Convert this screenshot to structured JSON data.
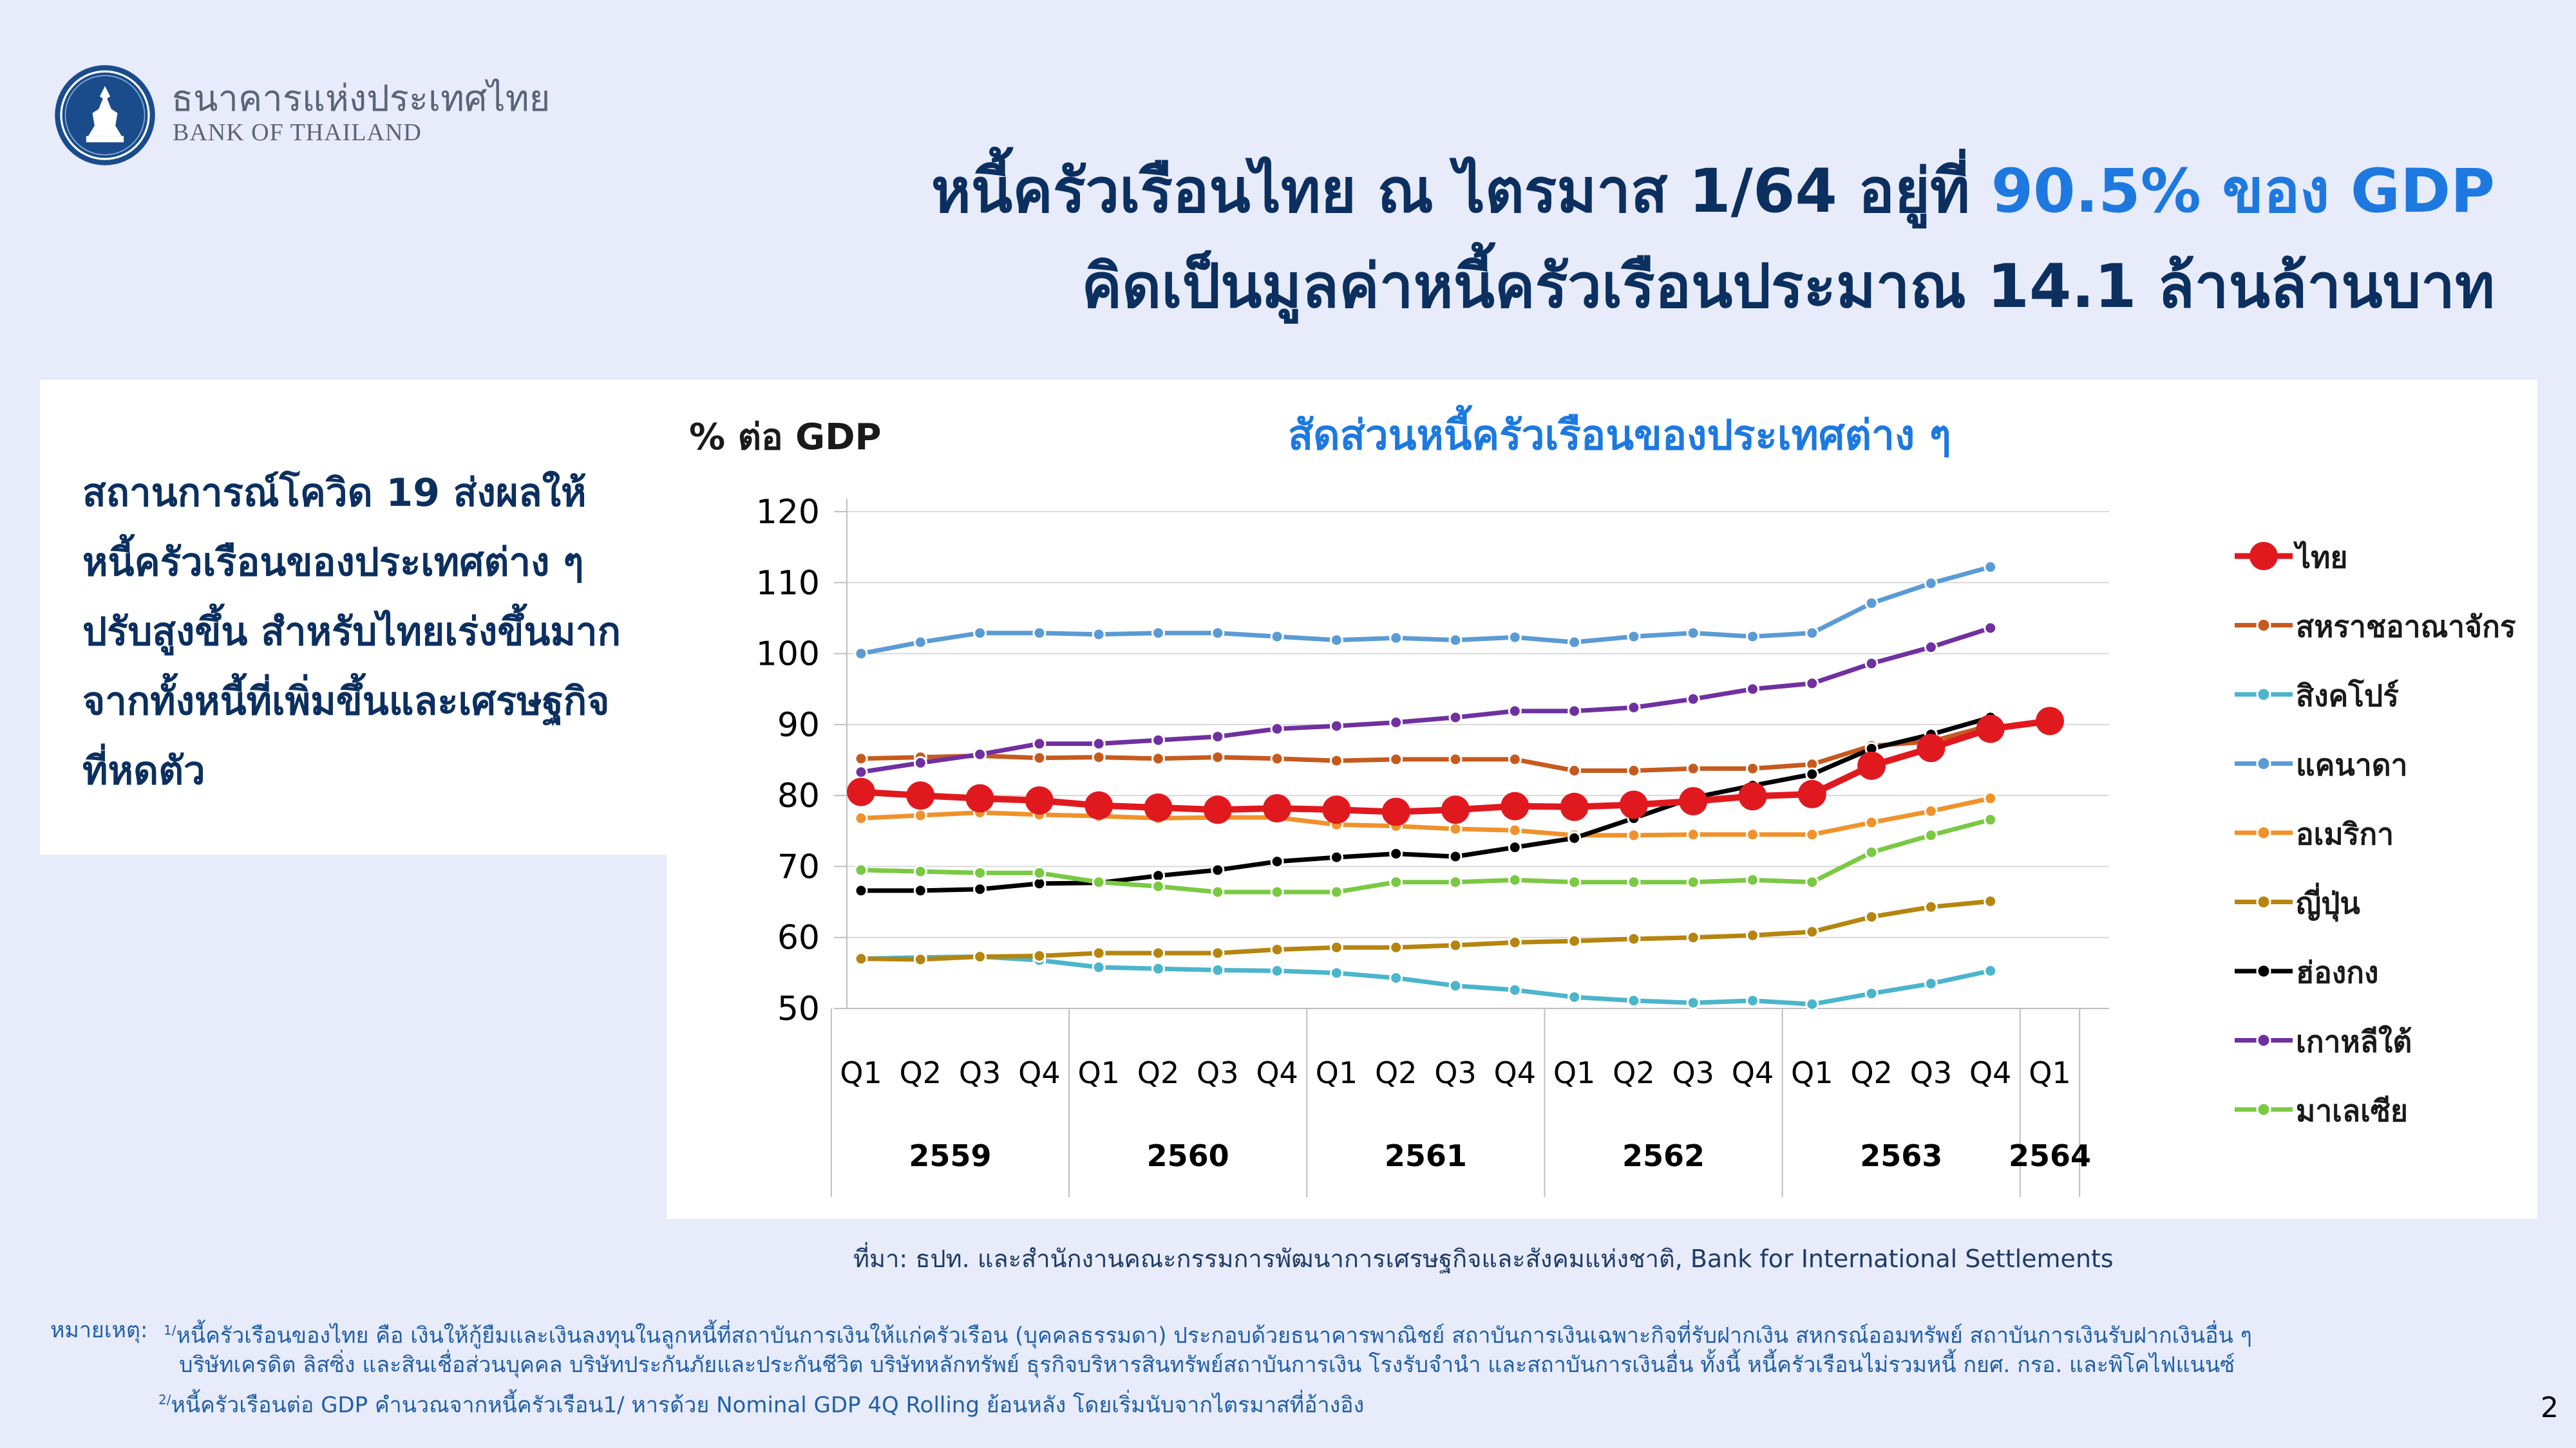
{
  "header": {
    "org_name_th": "ธนาคารแห่งประเทศไทย",
    "org_name_en": "BANK OF THAILAND",
    "title_line1_prefix": "หนี้ครัวเรือนไทย ณ ไตรมาส 1/64 อยู่ที่ ",
    "title_line1_highlight": "90.5% ของ GDP",
    "title_line2": "คิดเป็นมูลค่าหนี้ครัวเรือนประมาณ 14.1 ล้านล้านบาท",
    "highlight_color": "#1d79e0",
    "title_color": "#0b2f5f"
  },
  "sidebar": {
    "lines": [
      "สถานการณ์โควิด 19 ส่งผลให้",
      "หนี้ครัวเรือนของประเทศต่าง ๆ",
      "ปรับสูงขึ้น สำหรับไทยเร่งขึ้นมาก",
      "จากทั้งหนี้ที่เพิ่มขึ้นและเศรษฐกิจ",
      "ที่หดตัว"
    ]
  },
  "chart_data": {
    "type": "line",
    "title": "สัดส่วนหนี้ครัวเรือนของประเทศต่าง ๆ",
    "ylabel": "% ต่อ GDP",
    "xlabel": "",
    "ylim": [
      50,
      120
    ],
    "yticks": [
      50,
      60,
      70,
      80,
      90,
      100,
      110,
      120
    ],
    "grid": "horizontal",
    "legend_position": "right",
    "x": [
      "Q1",
      "Q2",
      "Q3",
      "Q4",
      "Q1",
      "Q2",
      "Q3",
      "Q4",
      "Q1",
      "Q2",
      "Q3",
      "Q4",
      "Q1",
      "Q2",
      "Q3",
      "Q4",
      "Q1",
      "Q2",
      "Q3",
      "Q4",
      "Q1"
    ],
    "x_groups": [
      {
        "label": "2559",
        "count": 4
      },
      {
        "label": "2560",
        "count": 4
      },
      {
        "label": "2561",
        "count": 4
      },
      {
        "label": "2562",
        "count": 4
      },
      {
        "label": "2563",
        "count": 4
      },
      {
        "label": "2564",
        "count": 1
      }
    ],
    "series": [
      {
        "name": "ไทย",
        "color": "#e0191f",
        "style": "thick-big-marker",
        "values": [
          80.5,
          80.0,
          79.6,
          79.3,
          78.6,
          78.3,
          78.0,
          78.2,
          78.0,
          77.7,
          78.0,
          78.5,
          78.4,
          78.7,
          79.2,
          79.9,
          80.2,
          84.2,
          86.7,
          89.4,
          90.5
        ]
      },
      {
        "name": "สหราชอาณาจักร",
        "color": "#c65a1e",
        "values": [
          85.2,
          85.4,
          85.6,
          85.3,
          85.4,
          85.2,
          85.4,
          85.2,
          84.9,
          85.1,
          85.1,
          85.1,
          83.5,
          83.5,
          83.8,
          83.8,
          84.4,
          87.0,
          87.6,
          89.9,
          null
        ]
      },
      {
        "name": "สิงคโปร์",
        "color": "#4bb5cc",
        "values": [
          57.0,
          57.2,
          57.3,
          56.8,
          55.8,
          55.6,
          55.4,
          55.3,
          55.0,
          54.3,
          53.2,
          52.6,
          51.6,
          51.1,
          50.8,
          51.1,
          50.6,
          52.1,
          53.5,
          55.3,
          null
        ]
      },
      {
        "name": "แคนาดา",
        "color": "#5b9bd5",
        "values": [
          100.0,
          101.6,
          102.9,
          102.9,
          102.7,
          102.9,
          102.9,
          102.4,
          101.9,
          102.2,
          101.9,
          102.3,
          101.6,
          102.4,
          102.9,
          102.4,
          102.9,
          107.1,
          109.9,
          112.2,
          null
        ]
      },
      {
        "name": "อเมริกา",
        "color": "#f0922b",
        "values": [
          76.8,
          77.2,
          77.6,
          77.3,
          77.1,
          76.8,
          76.9,
          76.9,
          75.9,
          75.7,
          75.3,
          75.1,
          74.4,
          74.4,
          74.5,
          74.5,
          74.5,
          76.2,
          77.8,
          79.6,
          null
        ]
      },
      {
        "name": "ญี่ปุ่น",
        "color": "#b5850f",
        "values": [
          57.0,
          56.9,
          57.3,
          57.4,
          57.8,
          57.8,
          57.8,
          58.3,
          58.6,
          58.6,
          58.9,
          59.3,
          59.5,
          59.8,
          60.0,
          60.3,
          60.8,
          62.9,
          64.3,
          65.1,
          null
        ]
      },
      {
        "name": "ฮ่องกง",
        "color": "#000000",
        "values": [
          66.6,
          66.6,
          66.8,
          67.6,
          67.7,
          68.7,
          69.5,
          70.7,
          71.3,
          71.8,
          71.4,
          72.7,
          74.0,
          76.8,
          79.7,
          81.4,
          83.0,
          86.6,
          88.6,
          91.0,
          null
        ]
      },
      {
        "name": "เกาหลีใต้",
        "color": "#7030a0",
        "values": [
          83.3,
          84.6,
          85.8,
          87.3,
          87.3,
          87.8,
          88.3,
          89.4,
          89.8,
          90.3,
          91.0,
          91.9,
          91.9,
          92.4,
          93.6,
          95.0,
          95.8,
          98.6,
          100.9,
          103.6,
          null
        ]
      },
      {
        "name": "มาเลเซีย",
        "color": "#7ac943",
        "values": [
          69.5,
          69.3,
          69.1,
          69.1,
          67.8,
          67.2,
          66.4,
          66.4,
          66.4,
          67.8,
          67.8,
          68.1,
          67.8,
          67.8,
          67.8,
          68.1,
          67.8,
          72.0,
          74.4,
          76.6,
          null
        ]
      }
    ]
  },
  "footer": {
    "source": "ที่มา: ธปท. และสำนักงานคณะกรรมการพัฒนาการเศรษฐกิจและสังคมแห่งชาติ,  Bank for International Settlements",
    "notes_label": "หมายเหตุ:",
    "note1_mark": "1/",
    "note1_line1": "หนี้ครัวเรือนของไทย คือ เงินให้กู้ยืมและเงินลงทุนในลูกหนี้ที่สถาบันการเงินให้แก่ครัวเรือน (บุคคลธรรมดา) ประกอบด้วยธนาคารพาณิชย์ สถาบันการเงินเฉพาะกิจที่รับฝากเงิน สหกรณ์ออมทรัพย์ สถาบันการเงินรับฝากเงินอื่น ๆ",
    "note1_line2": "บริษัทเครดิต ลิสซิ่ง และสินเชื่อส่วนบุคคล บริษัทประกันภัยและประกันชีวิต บริษัทหลักทรัพย์ ธุรกิจบริหารสินทรัพย์สถาบันการเงิน โรงรับจำนำ และสถาบันการเงินอื่น ทั้งนี้ หนี้ครัวเรือนไม่รวมหนี้ กยศ. กรอ. และพิโคไฟแนนซ์",
    "note2_mark": "2/",
    "note2_line": "หนี้ครัวเรือนต่อ GDP คำนวณจากหนี้ครัวเรือน1/ หารด้วย Nominal GDP 4Q Rolling ย้อนหลัง โดยเริ่มนับจากไตรมาสที่อ้างอิง",
    "page_number": "2"
  }
}
